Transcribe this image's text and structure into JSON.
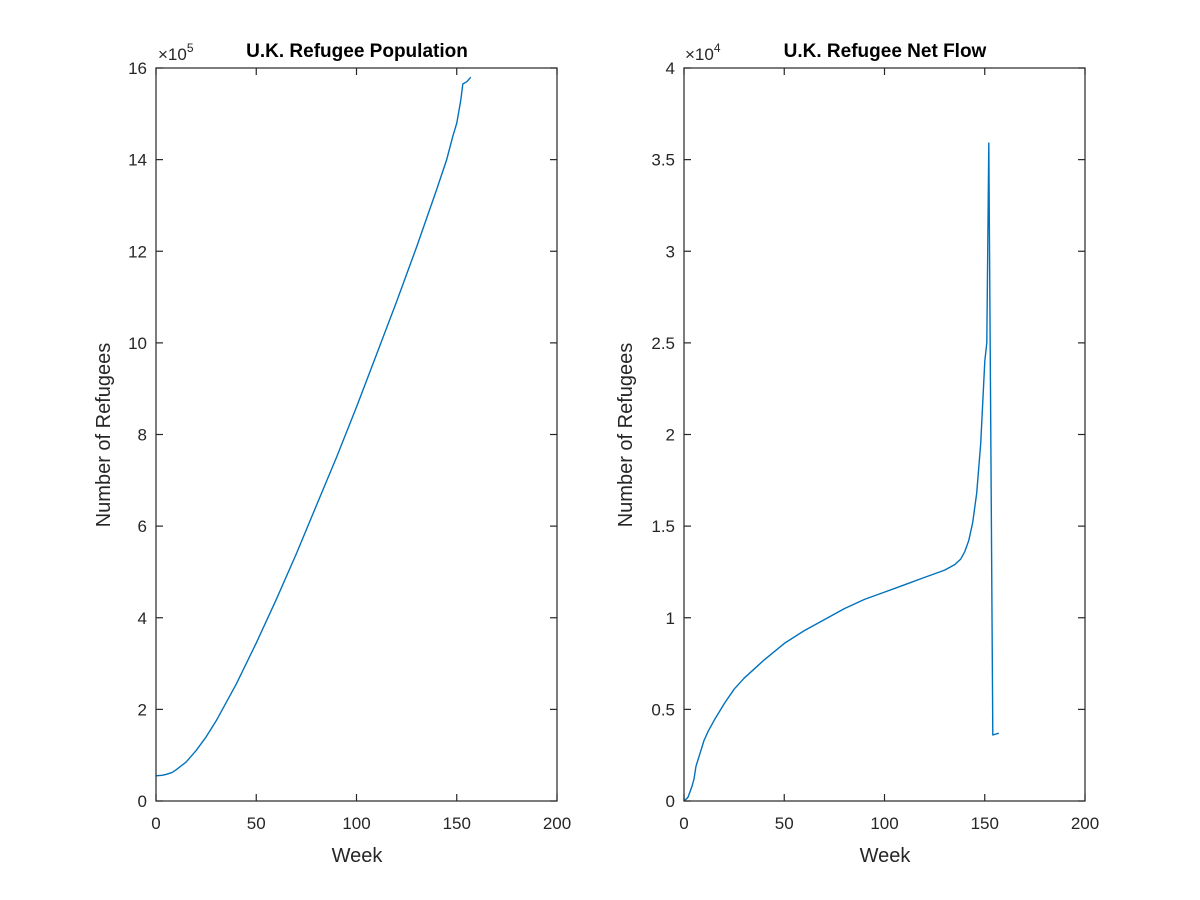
{
  "chart_data": [
    {
      "type": "line",
      "title": "U.K. Refugee Population",
      "xlabel": "Week",
      "ylabel": "Number of Refugees",
      "xlim": [
        0,
        200
      ],
      "ylim": [
        0,
        16
      ],
      "x_ticks": [
        "0",
        "50",
        "100",
        "150",
        "200"
      ],
      "y_ticks": [
        "0",
        "2",
        "4",
        "6",
        "8",
        "10",
        "12",
        "14",
        "16"
      ],
      "y_exponent_base": "×10",
      "y_exponent_power": "5",
      "grid": false,
      "color": "#0072BD",
      "series": [
        {
          "x": [
            0,
            3,
            5,
            8,
            10,
            15,
            20,
            25,
            30,
            40,
            50,
            60,
            70,
            80,
            90,
            100,
            110,
            120,
            130,
            140,
            145,
            148,
            150,
            152,
            153,
            155,
            157
          ],
          "values": [
            0.55,
            0.56,
            0.58,
            0.62,
            0.68,
            0.85,
            1.1,
            1.4,
            1.75,
            2.55,
            3.45,
            4.4,
            5.4,
            6.45,
            7.5,
            8.6,
            9.75,
            10.9,
            12.1,
            13.35,
            14.0,
            14.5,
            14.8,
            15.3,
            15.65,
            15.7,
            15.8
          ]
        }
      ]
    },
    {
      "type": "line",
      "title": "U.K. Refugee Net Flow",
      "xlabel": "Week",
      "ylabel": "Number of Refugees",
      "xlim": [
        0,
        200
      ],
      "ylim": [
        0,
        4
      ],
      "x_ticks": [
        "0",
        "50",
        "100",
        "150",
        "200"
      ],
      "y_ticks": [
        "0",
        "0.5",
        "1",
        "1.5",
        "2",
        "2.5",
        "3",
        "3.5",
        "4"
      ],
      "y_exponent_base": "×10",
      "y_exponent_power": "4",
      "grid": false,
      "color": "#0072BD",
      "series": [
        {
          "x": [
            0,
            2,
            4,
            5,
            6,
            8,
            10,
            12,
            15,
            20,
            25,
            30,
            40,
            50,
            60,
            70,
            80,
            90,
            100,
            110,
            120,
            130,
            135,
            138,
            140,
            142,
            144,
            146,
            148,
            150,
            151,
            152,
            153,
            154,
            157
          ],
          "values": [
            0,
            0.02,
            0.08,
            0.12,
            0.19,
            0.26,
            0.33,
            0.38,
            0.44,
            0.53,
            0.61,
            0.67,
            0.77,
            0.86,
            0.93,
            0.99,
            1.05,
            1.1,
            1.14,
            1.18,
            1.22,
            1.26,
            1.29,
            1.32,
            1.36,
            1.42,
            1.52,
            1.68,
            1.95,
            2.4,
            2.5,
            3.59,
            2.0,
            0.36,
            0.37
          ]
        }
      ]
    }
  ]
}
